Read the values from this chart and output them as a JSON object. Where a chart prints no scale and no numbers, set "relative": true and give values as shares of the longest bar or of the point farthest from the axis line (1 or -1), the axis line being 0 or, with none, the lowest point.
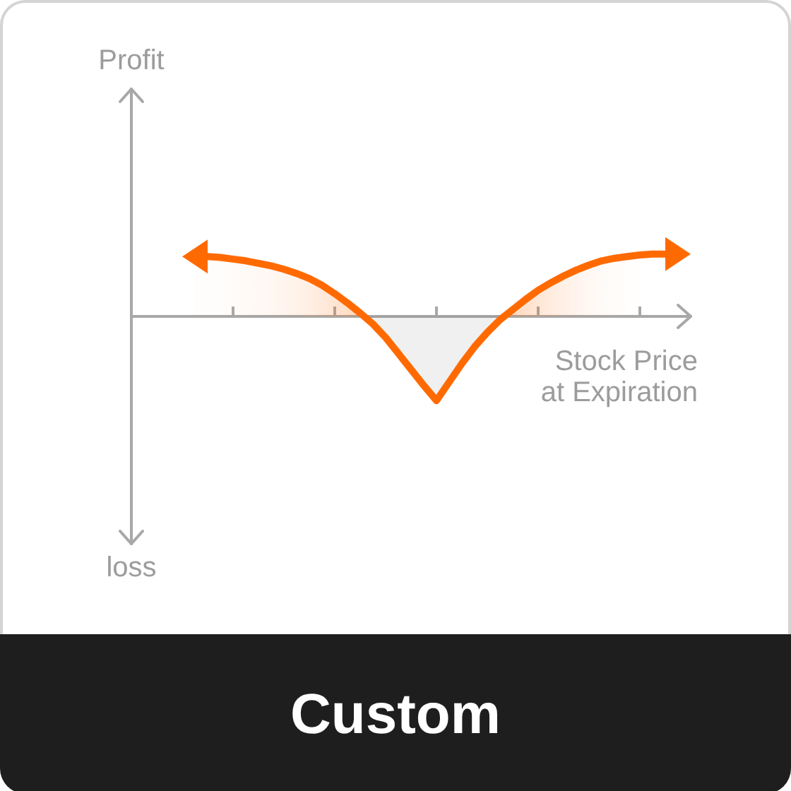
{
  "chart_data": {
    "type": "area",
    "title": "Custom",
    "xlabel": "Stock Price at Expiration",
    "annotations": [
      "Profit",
      "loss"
    ],
    "relative": true,
    "categories": [
      null,
      null,
      null,
      null,
      null,
      null,
      null,
      null,
      null,
      null,
      null,
      null,
      null,
      null,
      null,
      null,
      null,
      null,
      null,
      null,
      null,
      null,
      null,
      null,
      null,
      null,
      null,
      null,
      null,
      null,
      null,
      null,
      null,
      null,
      null,
      null,
      null,
      null,
      null,
      null,
      null,
      null,
      null,
      null,
      null
    ],
    "values": [
      null,
      null,
      null,
      null,
      null,
      0.71,
      0.71,
      0.7,
      0.68,
      0.66,
      0.63,
      0.6,
      0.56,
      0.51,
      0.45,
      0.37,
      0.27,
      0.16,
      0.04,
      -0.09,
      -0.25,
      -0.44,
      -0.63,
      -0.82,
      -1,
      -0.78,
      -0.56,
      -0.36,
      -0.19,
      -0.04,
      0.08,
      0.2,
      0.31,
      0.4,
      0.48,
      0.55,
      0.61,
      0.66,
      0.69,
      0.71,
      0.73,
      0.74,
      0.74,
      0.74,
      null
    ],
    "color": "#ff6a00",
    "marker": "none",
    "grid": false
  }
}
